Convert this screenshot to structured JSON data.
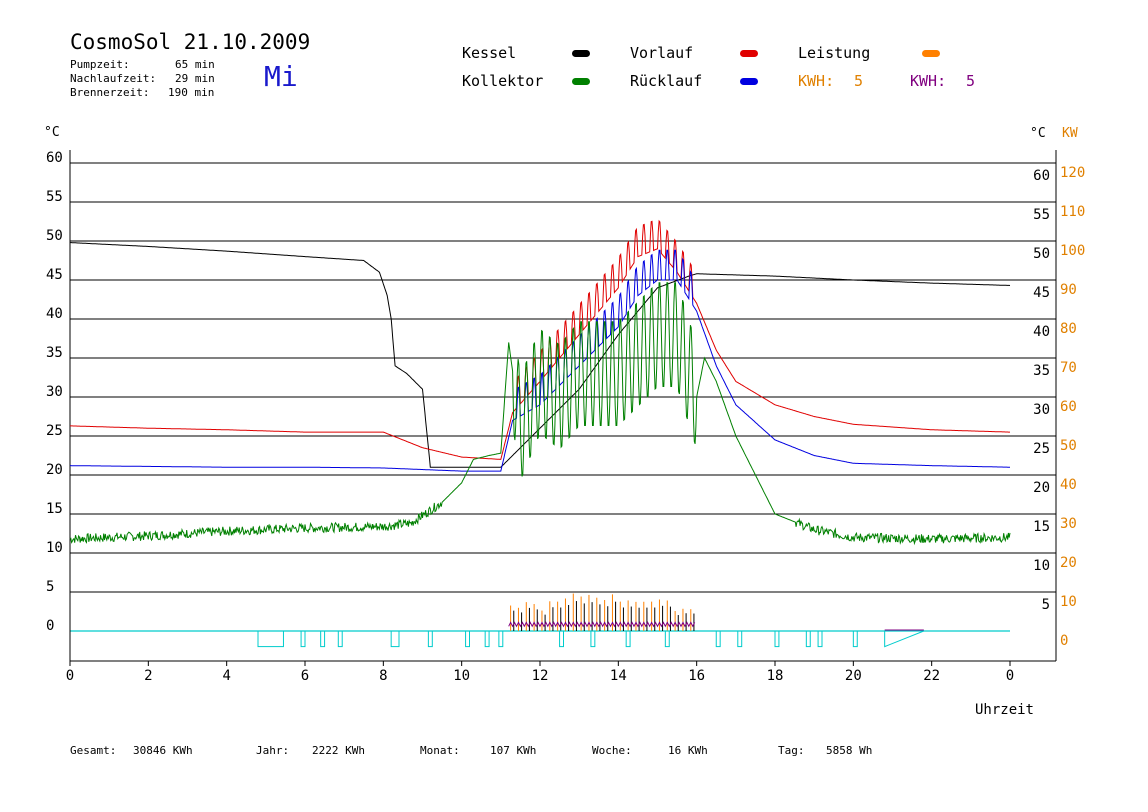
{
  "header": {
    "title": "CosmoSol 21.10.2009",
    "weekday": "Mi",
    "stats": [
      {
        "label": "Pumpzeit:",
        "value": "65 min"
      },
      {
        "label": "Nachlaufzeit:",
        "value": "29 min"
      },
      {
        "label": "Brennerzeit:",
        "value": "190 min"
      }
    ]
  },
  "legend": {
    "kessel": {
      "label": "Kessel",
      "color": "#000000"
    },
    "vorlauf": {
      "label": "Vorlauf",
      "color": "#e00000"
    },
    "leistung": {
      "label": "Leistung",
      "color": "#ff8000"
    },
    "kollektor": {
      "label": "Kollektor",
      "color": "#008000"
    },
    "ruecklauf": {
      "label": "Rücklauf",
      "color": "#0000e0"
    },
    "kwh_orange": {
      "label": "KWH:",
      "value": "5",
      "color": "#e08000"
    },
    "kwh_purple": {
      "label": "KWH:",
      "value": "5",
      "color": "#800080"
    }
  },
  "footer": [
    {
      "label": "Gesamt:",
      "value": "30846 KWh"
    },
    {
      "label": "Jahr:",
      "value": "2222 KWh"
    },
    {
      "label": "Monat:",
      "value": "107 KWh"
    },
    {
      "label": "Woche:",
      "value": "16 KWh"
    },
    {
      "label": "Tag:",
      "value": "5858 Wh"
    }
  ],
  "chart_data": {
    "type": "line",
    "xlabel": "Uhrzeit",
    "ylabel_left": "°C",
    "ylabel_right_temp": "°C",
    "ylabel_right_power": "KW",
    "xlim": [
      0,
      24
    ],
    "ylim": [
      -4,
      62
    ],
    "x_ticks": [
      "0",
      "2",
      "4",
      "6",
      "8",
      "10",
      "12",
      "14",
      "16",
      "18",
      "20",
      "22",
      "0"
    ],
    "y_ticks_left": [
      "0",
      "5",
      "10",
      "15",
      "20",
      "25",
      "30",
      "35",
      "40",
      "45",
      "50",
      "55",
      "60"
    ],
    "y_ticks_right_temp": [
      "5",
      "10",
      "15",
      "20",
      "25",
      "30",
      "35",
      "40",
      "45",
      "50",
      "55",
      "60"
    ],
    "y_ticks_right_power": [
      "0",
      "10",
      "20",
      "30",
      "40",
      "50",
      "60",
      "70",
      "80",
      "90",
      "100",
      "110",
      "120"
    ],
    "grid": "horizontal",
    "series": [
      {
        "name": "Kessel",
        "color": "#000000",
        "x": [
          0,
          2,
          4,
          6,
          7.5,
          7.9,
          8.1,
          8.2,
          8.3,
          8.6,
          9.0,
          9.2,
          10,
          11,
          12,
          13,
          14,
          15,
          15.8,
          16,
          18,
          20,
          22,
          24
        ],
        "y": [
          49.8,
          49.3,
          48.7,
          48,
          47.5,
          46,
          43,
          40,
          34,
          33,
          31,
          21,
          21,
          21,
          26,
          31,
          38,
          44,
          45.5,
          45.8,
          45.5,
          45,
          44.6,
          44.3
        ]
      },
      {
        "name": "Vorlauf",
        "color": "#e00000",
        "x": [
          0,
          2,
          4,
          6,
          8,
          9,
          10,
          11,
          11.3,
          12,
          13,
          14,
          14.5,
          15,
          15.5,
          16,
          16.5,
          17,
          18,
          19,
          20,
          22,
          24
        ],
        "y": [
          26.3,
          26,
          25.8,
          25.5,
          25.5,
          23.5,
          22.3,
          22,
          28,
          32,
          38,
          44,
          48,
          49,
          46,
          42,
          36,
          32,
          29,
          27.5,
          26.5,
          25.8,
          25.5
        ]
      },
      {
        "name": "Rücklauf",
        "color": "#0000e0",
        "x": [
          0,
          2,
          4,
          6,
          8,
          9,
          10,
          11,
          11.3,
          12,
          13,
          14,
          14.5,
          15,
          15.5,
          16,
          16.5,
          17,
          18,
          19,
          20,
          22,
          24
        ],
        "y": [
          21.2,
          21.1,
          21,
          21,
          20.9,
          20.7,
          20.5,
          20.5,
          27,
          29,
          34,
          39,
          43,
          45,
          45,
          41,
          34,
          29,
          24.5,
          22.5,
          21.5,
          21.2,
          21
        ]
      },
      {
        "name": "Kollektor",
        "color": "#008000",
        "x": [
          0,
          2,
          4,
          6,
          8,
          8.7,
          9.5,
          10,
          10.3,
          10.7,
          11,
          11.2,
          11.5,
          12,
          12.5,
          13,
          14,
          15,
          15.5,
          16,
          16.2,
          16.5,
          17,
          18,
          19,
          20,
          22,
          24
        ],
        "y": [
          11.8,
          12.2,
          12.8,
          13.2,
          13.4,
          13.8,
          16.5,
          19,
          22,
          22.5,
          22.8,
          37,
          26,
          32,
          30,
          33,
          33,
          38,
          38,
          30,
          35,
          32,
          25,
          15,
          13,
          12,
          11.8,
          12
        ]
      },
      {
        "name": "Leistung",
        "color": "#ff8000",
        "x": [
          11.2,
          11.5,
          12,
          12.5,
          13,
          13.5,
          14,
          14.5,
          15,
          15.5,
          16
        ],
        "y": [
          2,
          3,
          2.5,
          3,
          4,
          4,
          3.5,
          3.5,
          3,
          2.5,
          2
        ]
      }
    ]
  }
}
